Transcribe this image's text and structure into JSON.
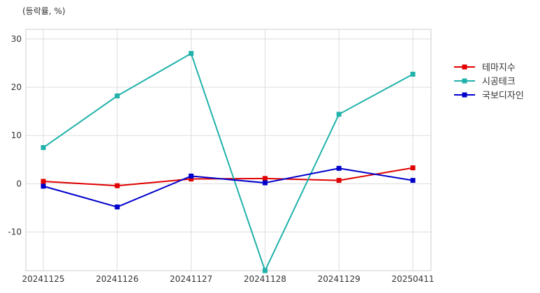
{
  "chart_data": {
    "type": "line",
    "title": "",
    "unit_label": "(등락률, %)",
    "xlabel": "",
    "ylabel": "",
    "categories": [
      "20241125",
      "20241126",
      "20241127",
      "20241128",
      "20241129",
      "20250411"
    ],
    "series": [
      {
        "name": "테마지수",
        "color": "#e00000",
        "values": [
          0.5,
          -0.4,
          1.0,
          1.1,
          0.7,
          3.3
        ]
      },
      {
        "name": "시공테크",
        "color": "#20b2aa",
        "values": [
          7.5,
          18.2,
          27.0,
          -18.0,
          14.4,
          22.7
        ]
      },
      {
        "name": "국보디자인",
        "color": "#0000cc",
        "values": [
          -0.5,
          -4.8,
          1.6,
          0.2,
          3.2,
          0.7
        ]
      }
    ],
    "ylim": [
      -18,
      32
    ],
    "yticks": [
      -10,
      0,
      10,
      20,
      30
    ],
    "grid": true,
    "legend_position": "right"
  }
}
